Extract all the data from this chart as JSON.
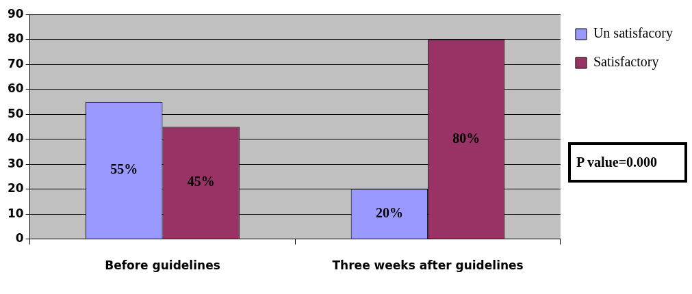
{
  "chart_data": {
    "type": "bar",
    "categories": [
      "Before guidelines",
      "Three weeks after guidelines"
    ],
    "series": [
      {
        "name": "Un satisfacory",
        "color": "#9999ff",
        "values": [
          55,
          20
        ],
        "value_labels": [
          "55%",
          "20%"
        ]
      },
      {
        "name": "Satisfactory",
        "color": "#993366",
        "values": [
          45,
          80
        ],
        "value_labels": [
          "45%",
          "80%"
        ]
      }
    ],
    "ylim": [
      0,
      90
    ],
    "yticks": [
      0,
      10,
      20,
      30,
      40,
      50,
      60,
      70,
      80,
      90
    ],
    "grid": "y",
    "legend": "right",
    "annotations": [
      "P value=0.000"
    ]
  }
}
